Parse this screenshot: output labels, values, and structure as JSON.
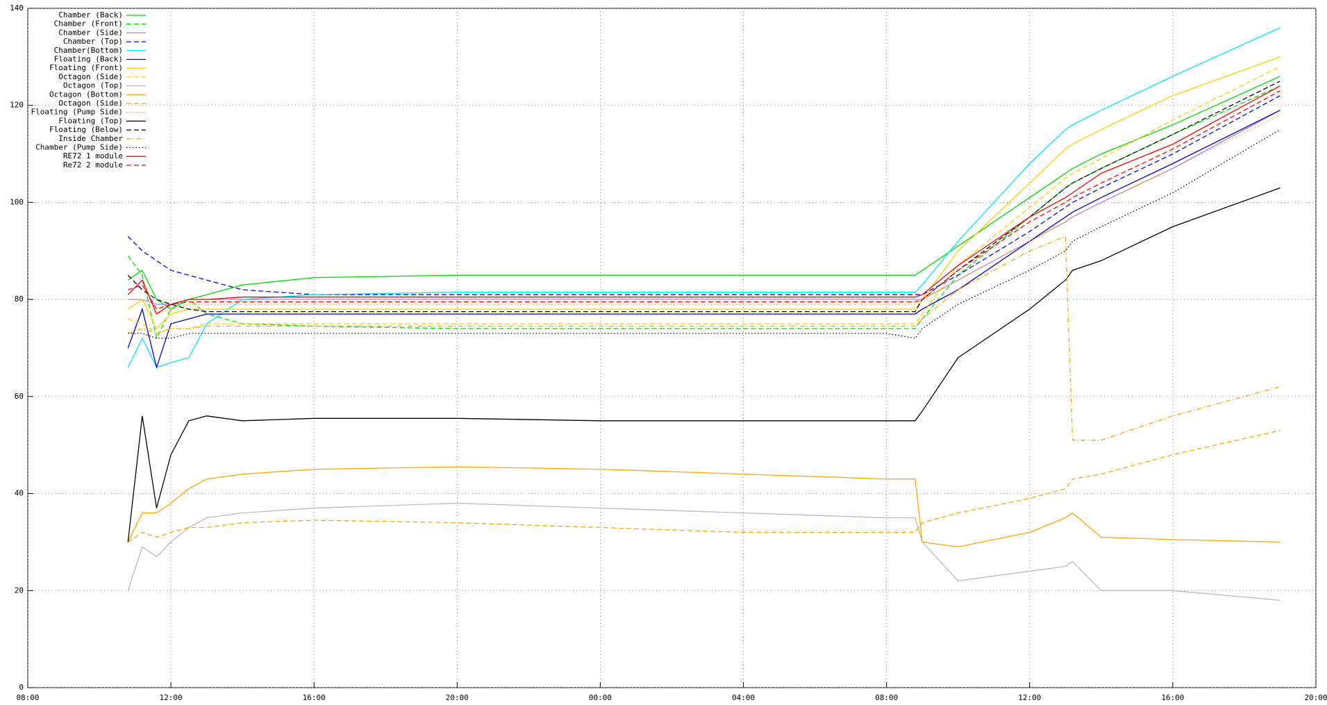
{
  "chart_data": {
    "type": "line",
    "grid": true,
    "legend": "top-left",
    "x": [
      10.8,
      11.2,
      11.6,
      12,
      12.5,
      13,
      14,
      16,
      20,
      24,
      28,
      32,
      32.8,
      33,
      34,
      36,
      37,
      37.2,
      38,
      40,
      43
    ],
    "xlim": [
      8,
      44
    ],
    "xticks": [
      {
        "value": 8,
        "label": "08:00"
      },
      {
        "value": 12,
        "label": "12:00"
      },
      {
        "value": 16,
        "label": "16:00"
      },
      {
        "value": 20,
        "label": "20:00"
      },
      {
        "value": 24,
        "label": "00:00"
      },
      {
        "value": 28,
        "label": "04:00"
      },
      {
        "value": 32,
        "label": "08:00"
      },
      {
        "value": 36,
        "label": "12:00"
      },
      {
        "value": 40,
        "label": "16:00"
      },
      {
        "value": 44,
        "label": "20:00"
      }
    ],
    "ylim": [
      0,
      140
    ],
    "yticks": [
      0,
      20,
      40,
      60,
      80,
      100,
      120,
      140
    ],
    "series": [
      {
        "name": "Chamber (Back)",
        "color": "#00dd00",
        "dash": "solid",
        "values": [
          84,
          86,
          80,
          78,
          80,
          81,
          83,
          84.5,
          85,
          85,
          85,
          85,
          85,
          86,
          91,
          101,
          106,
          107,
          110,
          116,
          126
        ]
      },
      {
        "name": "Chamber (Front)",
        "color": "#00dd00",
        "dash": "dashed",
        "values": [
          89,
          85,
          72,
          78,
          80,
          77,
          75,
          74.5,
          74,
          74,
          74,
          74,
          74,
          76,
          85,
          97,
          103,
          104,
          107,
          114,
          124
        ]
      },
      {
        "name": "Chamber (Side)",
        "color": "#b080e0",
        "dash": "solid",
        "values": [
          80,
          80,
          79,
          79,
          80,
          80,
          80,
          80,
          80,
          80,
          80,
          80,
          80,
          80,
          84,
          92,
          96,
          97,
          100,
          107,
          119
        ]
      },
      {
        "name": "Chamber (Top)",
        "color": "#0000ff",
        "dash": "dashed",
        "values": [
          93,
          90,
          88,
          86,
          85,
          84,
          82,
          81,
          81,
          81,
          81,
          81,
          81,
          81,
          85,
          94,
          99,
          100,
          103,
          110,
          122
        ]
      },
      {
        "name": "Chamber(Bottom)",
        "color": "#00e5ff",
        "dash": "solid",
        "values": [
          66,
          72,
          66,
          67,
          68,
          75,
          80,
          81,
          81.5,
          81.5,
          81.5,
          81.5,
          81.5,
          83,
          92,
          108,
          115,
          116,
          119,
          126,
          136
        ]
      },
      {
        "name": "Floating (Back)",
        "color": "#0000cc",
        "dash": "solid",
        "values": [
          70,
          78,
          66,
          75,
          76,
          77,
          77,
          77,
          77,
          77,
          77,
          77,
          77,
          78,
          82,
          92,
          97,
          98,
          101,
          108,
          119
        ]
      },
      {
        "name": "Floating (Front)",
        "color": "#ffcc00",
        "dash": "solid",
        "values": [
          78,
          80,
          74,
          77,
          78,
          78,
          78,
          78,
          78,
          78,
          78,
          78,
          78,
          80,
          90,
          104,
          111,
          112,
          115,
          122,
          130
        ]
      },
      {
        "name": "Octagon (Side)",
        "color": "#ffcc00",
        "dash": "dashed",
        "values": [
          76,
          75,
          73,
          74,
          74,
          75,
          75,
          75,
          75,
          75,
          75,
          75,
          75,
          77,
          87,
          99,
          105,
          106,
          109,
          117,
          128
        ]
      },
      {
        "name": "Octagon (Top)",
        "color": "#bbbbbb",
        "dash": "solid",
        "values": [
          20,
          29,
          27,
          30,
          33,
          35,
          36,
          37,
          38,
          37,
          36,
          35,
          35,
          30,
          22,
          24,
          25,
          26,
          20,
          20,
          18
        ]
      },
      {
        "name": "Octagon (Bottom)",
        "color": "#ffa500",
        "dash": "solid",
        "values": [
          30,
          36,
          36,
          38,
          41,
          43,
          44,
          45,
          45.5,
          45,
          44,
          43,
          43,
          30,
          29,
          32,
          35,
          36,
          31,
          30.5,
          30
        ]
      },
      {
        "name": "Octagon (Side)",
        "color": "#ffa500",
        "dash": "dashed",
        "values": [
          30,
          32,
          31,
          32,
          33,
          33,
          34,
          34.5,
          34,
          33,
          32,
          32,
          32,
          34,
          36,
          39,
          41,
          43,
          44,
          48,
          53
        ]
      },
      {
        "name": "Floating (Pump Side)",
        "color": "#ffa500",
        "dash": "dotted",
        "values": [
          80,
          80,
          77,
          78,
          79,
          79,
          79,
          79,
          79,
          79,
          79,
          79,
          79,
          80,
          84,
          92,
          96,
          97,
          100,
          107,
          118
        ]
      },
      {
        "name": "Floating (Top)",
        "color": "#000000",
        "dash": "solid",
        "values": [
          30,
          56,
          37,
          48,
          55,
          56,
          55,
          55.5,
          55.5,
          55,
          55,
          55,
          55,
          57,
          68,
          78,
          84,
          86,
          88,
          95,
          103
        ]
      },
      {
        "name": "Floating (Below)",
        "color": "#000000",
        "dash": "dashed",
        "values": [
          85,
          82,
          80,
          79,
          78,
          77.5,
          77.5,
          77.5,
          77.5,
          77.5,
          77.5,
          77.5,
          77.5,
          80,
          86,
          97,
          103,
          104,
          107,
          114,
          125
        ]
      },
      {
        "name": "Inside Chamber",
        "color": "#ffa500",
        "dash": "dash-dot",
        "values": [
          73,
          74,
          73,
          74,
          74,
          74.5,
          74.5,
          74.5,
          74.5,
          74.5,
          74.5,
          74.5,
          74.5,
          76,
          82,
          90,
          93,
          51,
          51,
          56,
          62
        ]
      },
      {
        "name": "Chamber (Pump Side)",
        "color": "#000000",
        "dash": "dotted",
        "values": [
          73,
          73,
          72,
          72,
          73,
          73,
          73,
          73,
          73,
          73,
          73,
          73,
          72,
          74,
          79,
          86,
          90,
          92,
          95,
          102,
          115
        ]
      },
      {
        "name": "RE72 1 module",
        "color": "#ff0000",
        "dash": "solid",
        "values": [
          81,
          84,
          77,
          79,
          80,
          80,
          80.5,
          80.5,
          80.5,
          80.5,
          80.5,
          80.5,
          80.5,
          81,
          87,
          97,
          101,
          102,
          106,
          112,
          124
        ]
      },
      {
        "name": "Re72 2 module",
        "color": "#ff0000",
        "dash": "dashed",
        "values": [
          82,
          83,
          78,
          79,
          79.5,
          79.5,
          79.5,
          79.5,
          79.5,
          79.5,
          79.5,
          79.5,
          79.5,
          80,
          86,
          96,
          100,
          101,
          104,
          111,
          123
        ]
      }
    ]
  }
}
